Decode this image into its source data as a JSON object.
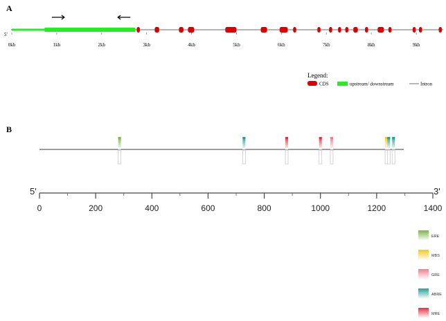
{
  "panel_a": {
    "label": "A",
    "five_prime": "5'",
    "axis_ticks": [
      "0kb",
      "1kb",
      "2kb",
      "3kb",
      "4kb",
      "5kb",
      "6kb",
      "7kb",
      "8kb",
      "9kb"
    ],
    "axis_max_kb": 9.6,
    "upstream_segments": [
      {
        "start_kb": 0.0,
        "end_kb": 0.73,
        "thickness": "thin"
      },
      {
        "start_kb": 0.73,
        "end_kb": 2.75,
        "thickness": "thick"
      }
    ],
    "primers": [
      {
        "direction": "forward",
        "center_kb": 1.03
      },
      {
        "direction": "reverse",
        "center_kb": 2.5
      }
    ],
    "cds_exons": [
      {
        "start_kb": 2.78,
        "end_kb": 2.84
      },
      {
        "start_kb": 3.18,
        "end_kb": 3.28
      },
      {
        "start_kb": 3.72,
        "end_kb": 3.82
      },
      {
        "start_kb": 3.92,
        "end_kb": 4.06
      },
      {
        "start_kb": 4.75,
        "end_kb": 5.0
      },
      {
        "start_kb": 5.54,
        "end_kb": 5.68
      },
      {
        "start_kb": 5.96,
        "end_kb": 6.14
      },
      {
        "start_kb": 6.26,
        "end_kb": 6.3
      },
      {
        "start_kb": 6.8,
        "end_kb": 6.86
      },
      {
        "start_kb": 7.06,
        "end_kb": 7.12
      },
      {
        "start_kb": 7.26,
        "end_kb": 7.32
      },
      {
        "start_kb": 7.42,
        "end_kb": 7.48
      },
      {
        "start_kb": 7.6,
        "end_kb": 7.7
      },
      {
        "start_kb": 7.86,
        "end_kb": 7.92
      },
      {
        "start_kb": 8.14,
        "end_kb": 8.28
      },
      {
        "start_kb": 8.38,
        "end_kb": 8.44
      },
      {
        "start_kb": 8.92,
        "end_kb": 8.96
      },
      {
        "start_kb": 9.06,
        "end_kb": 9.12
      },
      {
        "start_kb": 9.5,
        "end_kb": 9.55
      }
    ],
    "legend": {
      "title": "Legend:",
      "items": [
        {
          "label": "CDS",
          "color": "#dd0000",
          "kind": "cds"
        },
        {
          "label": "upstream/ downstream",
          "color": "#22ee22",
          "kind": "utr"
        },
        {
          "label": "Intron",
          "color": "#888888",
          "kind": "intron"
        }
      ]
    },
    "colors": {
      "intron": "#9a9a9a",
      "cds": "#dd0000",
      "upstream": "#22ee22"
    }
  },
  "panel_b": {
    "label": "B",
    "five_prime": "5'",
    "three_prime": "3'",
    "ruler_ticks": [
      "0",
      "200",
      "400",
      "600",
      "800",
      "1000",
      "1200",
      "1400"
    ],
    "ruler_max": 1400,
    "sequence_length": 1300,
    "elements": [
      {
        "type": "ERE",
        "position": 285
      },
      {
        "type": "ABRE",
        "position": 728
      },
      {
        "type": "MRE",
        "position": 880
      },
      {
        "type": "MRE",
        "position": 1000
      },
      {
        "type": "GRE",
        "position": 1040
      },
      {
        "type": "MBS",
        "position": 1235
      },
      {
        "type": "ABRE",
        "position": 1243
      },
      {
        "type": "ABRE",
        "position": 1260
      }
    ],
    "element_colors": {
      "ERE": "#7ab648",
      "MBS": "#f2c81e",
      "GRE": "#ee7f95",
      "ABRE": "#2a9d9a",
      "MRE": "#e03346"
    },
    "legend": [
      "ERE",
      "MBS",
      "GRE",
      "ABRE",
      "MRE"
    ]
  }
}
